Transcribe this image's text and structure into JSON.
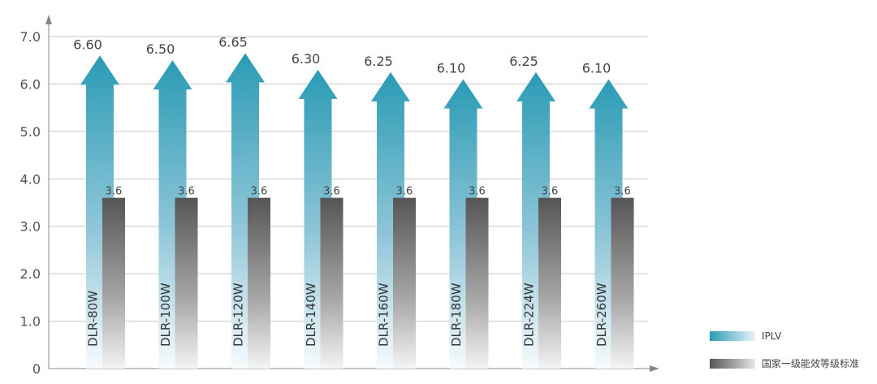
{
  "chart_data": {
    "type": "bar",
    "categories": [
      "DLR-80W",
      "DLR-100W",
      "DLR-120W",
      "DLR-140W",
      "DLR-160W",
      "DLR-180W",
      "DLR-224W",
      "DLR-260W"
    ],
    "series": [
      {
        "name": "IPLV",
        "values": [
          6.6,
          6.5,
          6.65,
          6.3,
          6.25,
          6.1,
          6.25,
          6.1
        ],
        "labels": [
          "6.60",
          "6.50",
          "6.65",
          "6.30",
          "6.25",
          "6.10",
          "6.25",
          "6.10"
        ],
        "color": "#2a9bb5"
      },
      {
        "name": "国家一级能效等级标准",
        "values": [
          3.6,
          3.6,
          3.6,
          3.6,
          3.6,
          3.6,
          3.6,
          3.6
        ],
        "labels": [
          "3.6",
          "3.6",
          "3.6",
          "3.6",
          "3.6",
          "3.6",
          "3.6",
          "3.6"
        ],
        "color": "#5a5a5a"
      }
    ],
    "yticks": [
      "0",
      "1.0",
      "2.0",
      "3.0",
      "4.0",
      "5.0",
      "6.0",
      "7.0"
    ],
    "ylim": [
      0,
      7
    ],
    "grid": true,
    "legend": "bottom-right",
    "title": "",
    "xlabel": "",
    "ylabel": ""
  }
}
